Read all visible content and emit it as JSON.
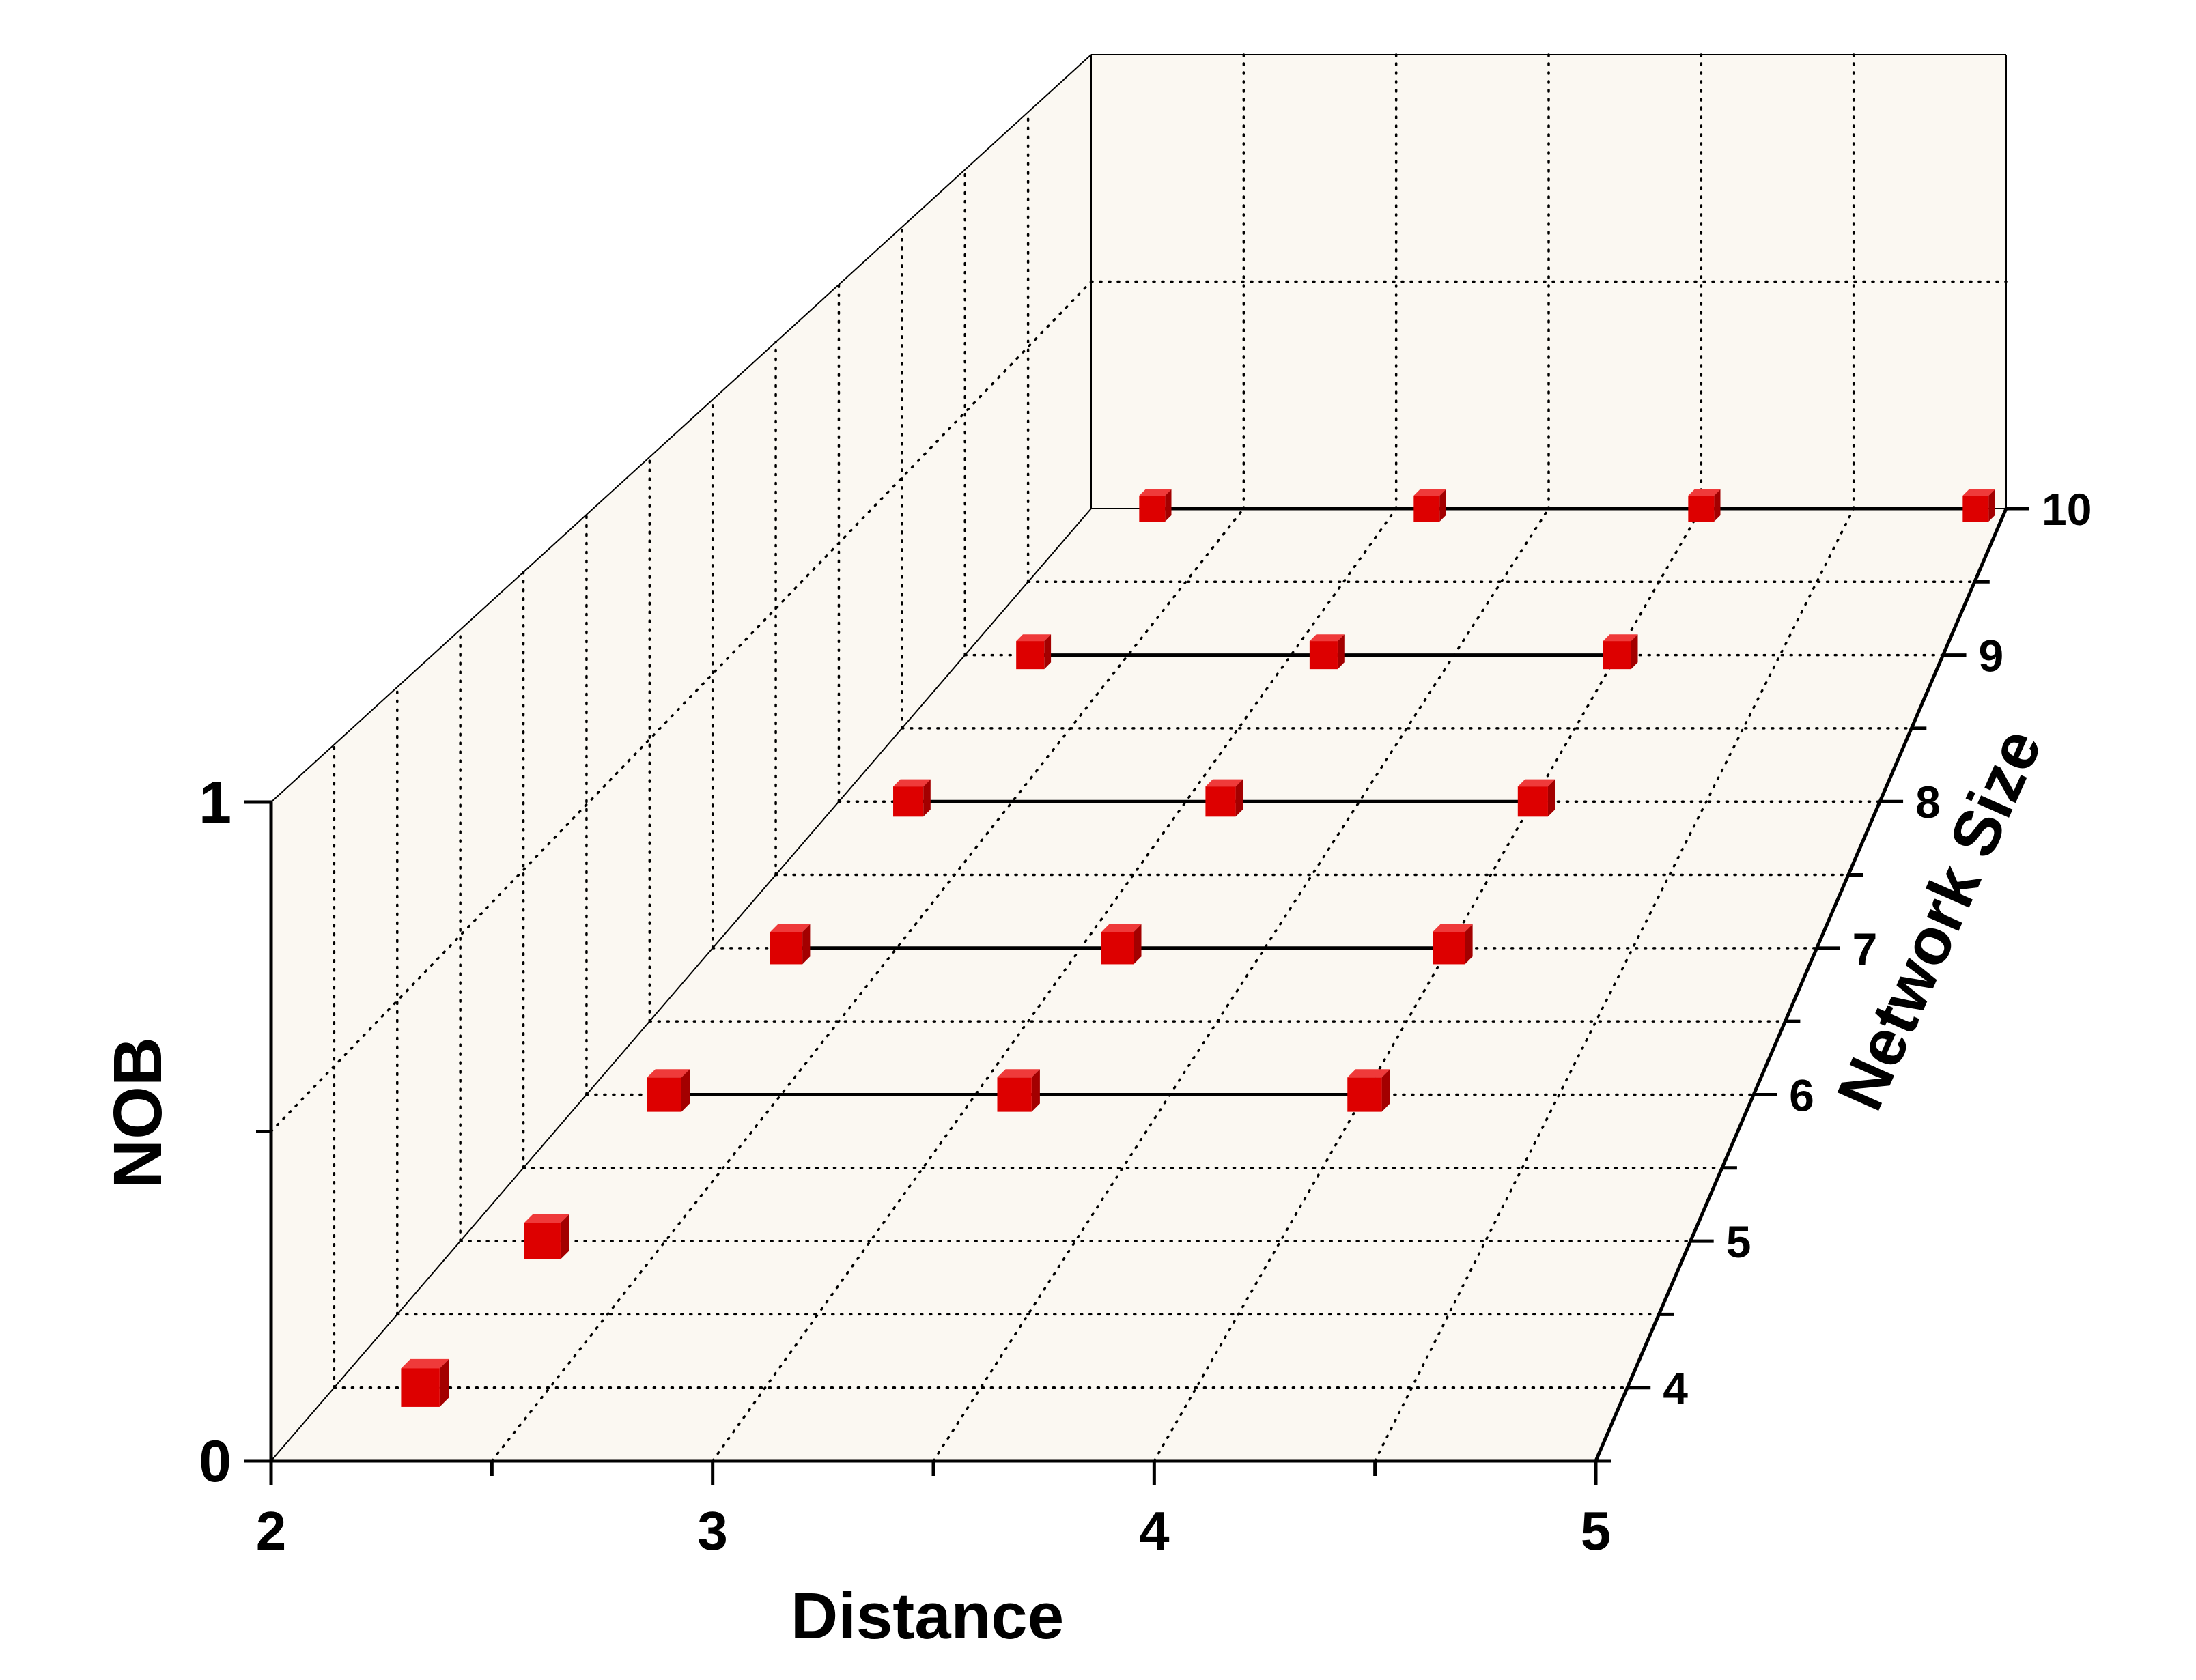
{
  "chart_data": {
    "type": "scatter",
    "subtype": "3d-scatter-with-lines",
    "title": "",
    "xlabel": "Distance",
    "ylabel": "Network Size",
    "zlabel": "NOB",
    "xlim": [
      2,
      5
    ],
    "ylim": [
      3.5,
      10
    ],
    "zlim": [
      0,
      1
    ],
    "x_ticks": [
      "2",
      "3",
      "4",
      "5"
    ],
    "y_ticks": [
      "4",
      "5",
      "6",
      "7",
      "8",
      "9",
      "10"
    ],
    "z_ticks": [
      "0",
      "1"
    ],
    "grid": true,
    "colors": {
      "marker": "#dd0000",
      "line": "#000000",
      "panel": "#fbf8f2",
      "grid": "#000000"
    },
    "series": [
      {
        "y": 4,
        "x": [
          2.2
        ],
        "z": [
          0
        ]
      },
      {
        "y": 5,
        "x": [
          2.2
        ],
        "z": [
          0
        ]
      },
      {
        "y": 6,
        "x": [
          2.2,
          3.1,
          4.0
        ],
        "z": [
          0,
          0,
          0
        ]
      },
      {
        "y": 7,
        "x": [
          2.2,
          3.1,
          4.0
        ],
        "z": [
          0,
          0,
          0
        ]
      },
      {
        "y": 8,
        "x": [
          2.2,
          3.1,
          4.0
        ],
        "z": [
          0,
          0,
          0
        ]
      },
      {
        "y": 9,
        "x": [
          2.2,
          3.1,
          4.0
        ],
        "z": [
          0,
          0,
          0
        ]
      },
      {
        "y": 10,
        "x": [
          2.2,
          3.1,
          4.0,
          4.9
        ],
        "z": [
          0,
          0,
          0,
          0
        ]
      }
    ]
  }
}
